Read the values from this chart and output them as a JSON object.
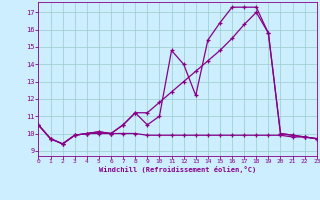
{
  "xlabel": "Windchill (Refroidissement éolien,°C)",
  "bg_color": "#cceeff",
  "line_color": "#880088",
  "grid_color": "#99cccc",
  "x_ticks": [
    0,
    1,
    2,
    3,
    4,
    5,
    6,
    7,
    8,
    9,
    10,
    11,
    12,
    13,
    14,
    15,
    16,
    17,
    18,
    19,
    20,
    21,
    22,
    23
  ],
  "y_ticks": [
    9,
    10,
    11,
    12,
    13,
    14,
    15,
    16,
    17
  ],
  "xlim": [
    0,
    23
  ],
  "ylim": [
    8.7,
    17.6
  ],
  "series1_x": [
    0,
    1,
    2,
    3,
    4,
    5,
    6,
    7,
    8,
    9,
    10,
    11,
    12,
    13,
    14,
    15,
    16,
    17,
    18,
    19,
    20,
    21,
    22,
    23
  ],
  "series1_y": [
    10.5,
    9.7,
    9.4,
    9.9,
    10.0,
    10.1,
    10.0,
    10.5,
    11.2,
    10.5,
    11.0,
    14.8,
    14.0,
    12.2,
    15.4,
    16.4,
    17.3,
    17.3,
    17.3,
    15.8,
    10.0,
    9.9,
    9.8,
    9.7
  ],
  "series2_x": [
    0,
    1,
    2,
    3,
    4,
    5,
    6,
    7,
    8,
    9,
    10,
    11,
    12,
    13,
    14,
    15,
    16,
    17,
    18,
    19,
    20,
    21,
    22,
    23
  ],
  "series2_y": [
    10.5,
    9.7,
    9.4,
    9.9,
    10.0,
    10.1,
    10.0,
    10.5,
    11.2,
    11.2,
    11.8,
    12.4,
    13.0,
    13.6,
    14.2,
    14.8,
    15.5,
    16.3,
    17.0,
    15.8,
    10.0,
    9.9,
    9.8,
    9.7
  ],
  "series3_x": [
    0,
    1,
    2,
    3,
    4,
    5,
    6,
    7,
    8,
    9,
    10,
    11,
    12,
    13,
    14,
    15,
    16,
    17,
    18,
    19,
    20,
    21,
    22,
    23
  ],
  "series3_y": [
    10.5,
    9.7,
    9.4,
    9.9,
    10.0,
    10.0,
    10.0,
    10.0,
    10.0,
    9.9,
    9.9,
    9.9,
    9.9,
    9.9,
    9.9,
    9.9,
    9.9,
    9.9,
    9.9,
    9.9,
    9.9,
    9.8,
    9.8,
    9.7
  ]
}
